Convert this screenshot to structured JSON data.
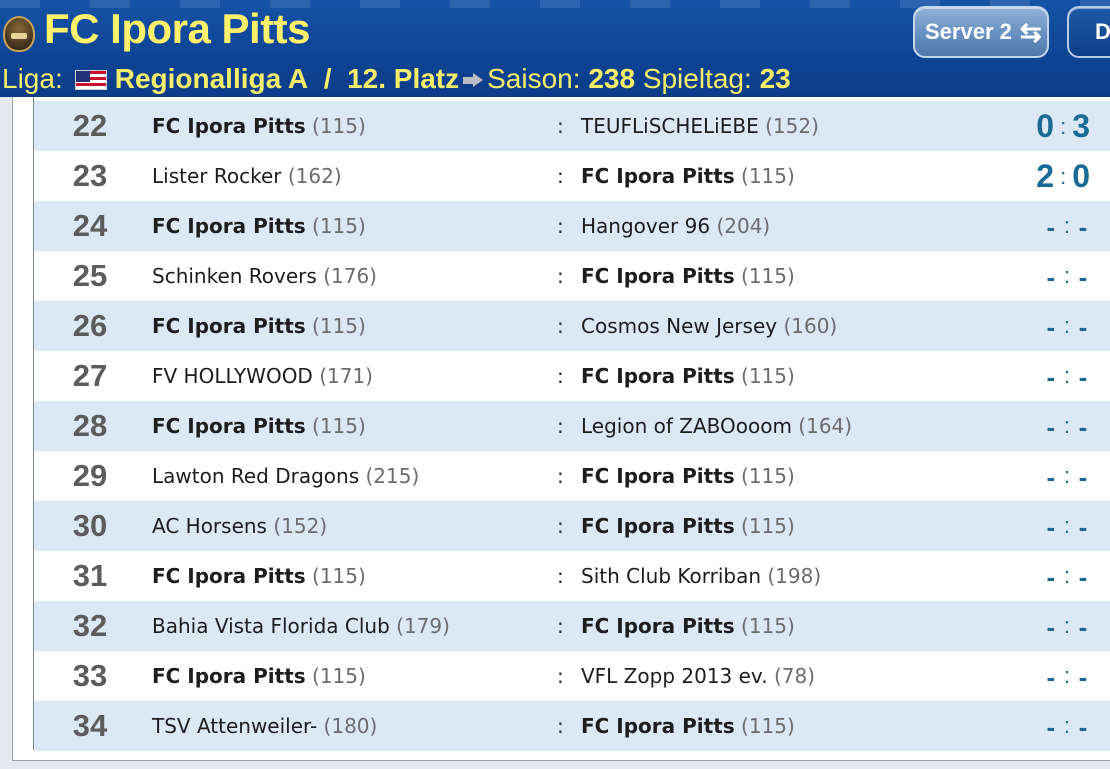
{
  "header": {
    "team_name": "FC Ipora Pitts",
    "liga_label": "Liga:",
    "league_name": "Regionalliga A",
    "separator": "/",
    "place": "12. Platz",
    "saison_label": "Saison:",
    "saison_value": "238",
    "spieltag_label": "Spieltag:",
    "spieltag_value": "23",
    "server_button": "Server 2",
    "server_icon": "⇆",
    "second_button": "D",
    "colors": {
      "title": "#fff16b",
      "header_bg": "#0f4596",
      "score": "#1a6a96",
      "row_alt": "#dde8f5"
    }
  },
  "fixtures": [
    {
      "day": "22",
      "home": "FC Ipora Pitts",
      "home_rank": "(115)",
      "away": "TEUFLiSCHELiEBE",
      "away_rank": "(152)",
      "colon": ":",
      "score_home": "0",
      "score_sep": ":",
      "score_away": "3"
    },
    {
      "day": "23",
      "home": "Lister Rocker",
      "home_rank": "(162)",
      "away": "FC Ipora Pitts",
      "away_rank": "(115)",
      "colon": ":",
      "score_home": "2",
      "score_sep": ":",
      "score_away": "0"
    },
    {
      "day": "24",
      "home": "FC Ipora Pitts",
      "home_rank": "(115)",
      "away": "Hangover 96",
      "away_rank": "(204)",
      "colon": ":",
      "score_home": "-",
      "score_sep": ":",
      "score_away": "-"
    },
    {
      "day": "25",
      "home": "Schinken Rovers",
      "home_rank": "(176)",
      "away": "FC Ipora Pitts",
      "away_rank": "(115)",
      "colon": ":",
      "score_home": "-",
      "score_sep": ":",
      "score_away": "-"
    },
    {
      "day": "26",
      "home": "FC Ipora Pitts",
      "home_rank": "(115)",
      "away": "Cosmos New Jersey",
      "away_rank": "(160)",
      "colon": ":",
      "score_home": "-",
      "score_sep": ":",
      "score_away": "-"
    },
    {
      "day": "27",
      "home": "FV HOLLYWOOD",
      "home_rank": "(171)",
      "away": "FC Ipora Pitts",
      "away_rank": "(115)",
      "colon": ":",
      "score_home": "-",
      "score_sep": ":",
      "score_away": "-"
    },
    {
      "day": "28",
      "home": "FC Ipora Pitts",
      "home_rank": "(115)",
      "away": "Legion of ZABOooom",
      "away_rank": "(164)",
      "colon": ":",
      "score_home": "-",
      "score_sep": ":",
      "score_away": "-"
    },
    {
      "day": "29",
      "home": "Lawton Red Dragons",
      "home_rank": "(215)",
      "away": "FC Ipora Pitts",
      "away_rank": "(115)",
      "colon": ":",
      "score_home": "-",
      "score_sep": ":",
      "score_away": "-"
    },
    {
      "day": "30",
      "home": "AC Horsens",
      "home_rank": "(152)",
      "away": "FC Ipora Pitts",
      "away_rank": "(115)",
      "colon": ":",
      "score_home": "-",
      "score_sep": ":",
      "score_away": "-"
    },
    {
      "day": "31",
      "home": "FC Ipora Pitts",
      "home_rank": "(115)",
      "away": "Sith Club Korriban",
      "away_rank": "(198)",
      "colon": ":",
      "score_home": "-",
      "score_sep": ":",
      "score_away": "-"
    },
    {
      "day": "32",
      "home": "Bahia Vista Florida Club",
      "home_rank": "(179)",
      "away": "FC Ipora Pitts",
      "away_rank": "(115)",
      "colon": ":",
      "score_home": "-",
      "score_sep": ":",
      "score_away": "-"
    },
    {
      "day": "33",
      "home": "FC Ipora Pitts",
      "home_rank": "(115)",
      "away": "VFL Zopp 2013 ev.",
      "away_rank": "(78)",
      "colon": ":",
      "score_home": "-",
      "score_sep": ":",
      "score_away": "-"
    },
    {
      "day": "34",
      "home": "TSV Attenweiler-",
      "home_rank": "(180)",
      "away": "FC Ipora Pitts",
      "away_rank": "(115)",
      "colon": ":",
      "score_home": "-",
      "score_sep": ":",
      "score_away": "-"
    }
  ]
}
